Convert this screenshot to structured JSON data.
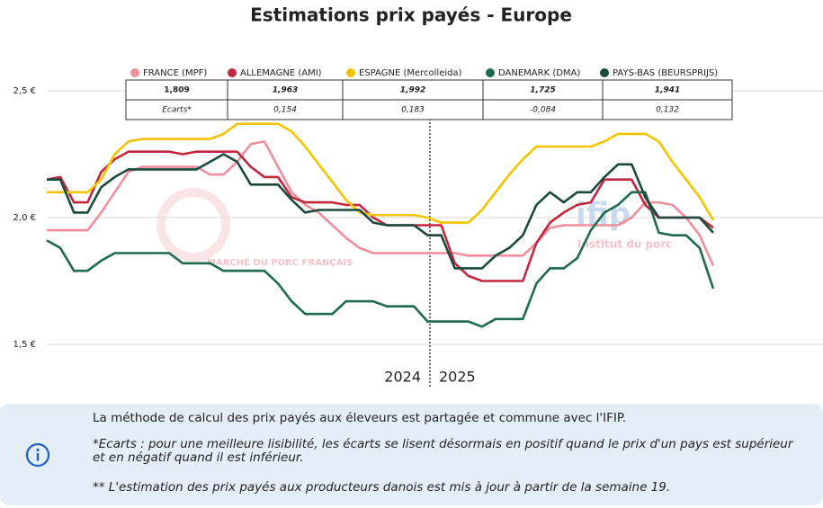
{
  "chart_data": {
    "type": "line",
    "title": "Estimations prix payés - Europe",
    "categories": [
      null,
      null,
      null,
      null,
      null,
      null,
      null,
      null,
      null,
      null,
      null,
      null,
      null,
      null,
      null,
      null,
      null,
      null,
      null,
      null,
      null,
      null,
      null,
      null,
      null,
      null,
      null,
      null,
      null,
      null,
      null,
      null,
      null,
      null,
      null,
      null,
      null,
      null,
      null,
      null,
      null,
      null,
      null,
      null,
      null,
      null,
      null,
      null,
      null,
      null
    ],
    "ylim": [
      1.5,
      2.5
    ],
    "yticks": [
      {
        "value": 1.5,
        "label": "1,5 €"
      },
      {
        "value": 2.0,
        "label": "2,0 €"
      },
      {
        "value": 2.5,
        "label": "2,5 €"
      }
    ],
    "grid": true,
    "annotations": [
      "2024",
      "2025"
    ],
    "watermarks": [
      "MARCHÉ DU PORC FRANÇAIS",
      "ifip",
      "Institut du porc"
    ],
    "series": [
      {
        "name": "FRANCE (MPF)",
        "color": "#ef8f9b",
        "values": [
          1.95,
          1.95,
          1.95,
          1.95,
          2.02,
          2.1,
          2.18,
          2.2,
          2.2,
          2.2,
          2.2,
          2.2,
          2.17,
          2.17,
          2.22,
          2.29,
          2.3,
          2.2,
          2.1,
          2.05,
          2.02,
          1.97,
          1.92,
          1.88,
          1.86,
          1.86,
          1.86,
          1.86,
          1.86,
          1.86,
          1.86,
          1.85,
          1.85,
          1.85,
          1.85,
          1.85,
          1.9,
          1.96,
          1.97,
          1.97,
          1.97,
          1.97,
          1.97,
          2.0,
          2.06,
          2.06,
          2.05,
          2.0,
          1.93,
          1.81
        ]
      },
      {
        "name": "ALLEMAGNE (AMI)",
        "color": "#c1283e",
        "values": [
          2.15,
          2.16,
          2.06,
          2.06,
          2.18,
          2.23,
          2.26,
          2.26,
          2.26,
          2.26,
          2.25,
          2.26,
          2.26,
          2.26,
          2.26,
          2.2,
          2.16,
          2.16,
          2.08,
          2.06,
          2.06,
          2.06,
          2.05,
          2.05,
          2.0,
          1.97,
          1.97,
          1.97,
          1.97,
          1.97,
          1.82,
          1.77,
          1.75,
          1.75,
          1.75,
          1.75,
          1.9,
          1.98,
          2.02,
          2.05,
          2.06,
          2.15,
          2.15,
          2.15,
          2.05,
          2.0,
          2.0,
          2.0,
          2.0,
          1.96
        ]
      },
      {
        "name": "ESPAGNE (Mercolleida)",
        "color": "#f5c400",
        "values": [
          2.1,
          2.1,
          2.1,
          2.1,
          2.15,
          2.25,
          2.3,
          2.31,
          2.31,
          2.31,
          2.31,
          2.31,
          2.31,
          2.33,
          2.37,
          2.37,
          2.37,
          2.37,
          2.34,
          2.28,
          2.21,
          2.14,
          2.07,
          2.02,
          2.01,
          2.01,
          2.01,
          2.01,
          2.0,
          1.98,
          1.98,
          1.98,
          2.03,
          2.1,
          2.17,
          2.23,
          2.28,
          2.28,
          2.28,
          2.28,
          2.28,
          2.3,
          2.33,
          2.33,
          2.33,
          2.3,
          2.22,
          2.15,
          2.08,
          1.99
        ]
      },
      {
        "name": "DANEMARK (DMA)",
        "color": "#1e6a4e",
        "values": [
          1.91,
          1.88,
          1.79,
          1.79,
          1.83,
          1.86,
          1.86,
          1.86,
          1.86,
          1.86,
          1.82,
          1.82,
          1.82,
          1.79,
          1.79,
          1.79,
          1.79,
          1.74,
          1.67,
          1.62,
          1.62,
          1.62,
          1.67,
          1.67,
          1.67,
          1.65,
          1.65,
          1.65,
          1.59,
          1.59,
          1.59,
          1.59,
          1.57,
          1.6,
          1.6,
          1.6,
          1.74,
          1.8,
          1.8,
          1.84,
          1.95,
          2.02,
          2.05,
          2.1,
          2.1,
          1.94,
          1.93,
          1.93,
          1.88,
          1.72
        ]
      },
      {
        "name": "PAYS-BAS (BEURSPRIJS)",
        "color": "#1b4a3c",
        "values": [
          2.15,
          2.15,
          2.02,
          2.02,
          2.12,
          2.16,
          2.19,
          2.19,
          2.19,
          2.19,
          2.19,
          2.19,
          2.22,
          2.25,
          2.22,
          2.13,
          2.13,
          2.13,
          2.07,
          2.02,
          2.03,
          2.03,
          2.03,
          2.03,
          1.98,
          1.97,
          1.97,
          1.97,
          1.93,
          1.93,
          1.8,
          1.8,
          1.8,
          1.85,
          1.88,
          1.93,
          2.05,
          2.1,
          2.06,
          2.1,
          2.1,
          2.16,
          2.21,
          2.21,
          2.08,
          2.0,
          2.0,
          2.0,
          2.0,
          1.94
        ]
      }
    ]
  },
  "table": {
    "rows": [
      [
        "1,809",
        "1,963",
        "1,992",
        "1,725",
        "1,941"
      ],
      [
        "Ecarts*",
        "0,154",
        "0,183",
        "-0,084",
        "0,132"
      ]
    ]
  },
  "notes": [
    "La méthode de calcul des prix payés aux éleveurs est partagée et commune avec l'IFIP.",
    "*Ecarts : pour une meilleure lisibilité, les écarts se lisent désormais en positif quand le prix d'un pays est supérieur et en négatif quand il est inférieur.",
    "** L'estimation des prix payés aux producteurs danois est mis à jour à partir de la semaine 19."
  ]
}
